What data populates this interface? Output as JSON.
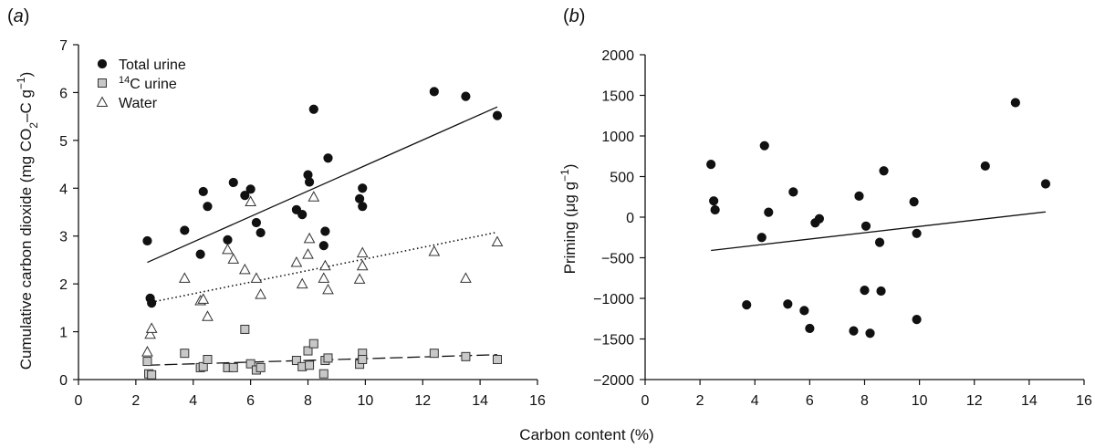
{
  "figure": {
    "shared_xlabel": "Carbon content (%)",
    "colors": {
      "total_urine": "#111111",
      "c14_urine": "#c8c8c8",
      "water": "#ffffff",
      "axis": "#111111"
    }
  },
  "chart_data": [
    {
      "panel": "a",
      "type": "scatter",
      "xlabel": "Carbon content (%)",
      "ylabel": "Cumulative carbon dioxide (mg CO2–C g−1)",
      "xlim": [
        0,
        16
      ],
      "ylim": [
        0,
        7
      ],
      "xticks": [
        0,
        2,
        4,
        6,
        8,
        10,
        12,
        14,
        16
      ],
      "yticks": [
        0,
        1,
        2,
        3,
        4,
        5,
        6,
        7
      ],
      "legend": "top-left",
      "series": [
        {
          "name": "Total urine",
          "marker": "filled-circle",
          "color": "#111111",
          "trendline": {
            "style": "solid",
            "x": [
              2.4,
              14.6
            ],
            "y": [
              2.45,
              5.7
            ]
          },
          "points": [
            [
              2.4,
              2.9
            ],
            [
              2.5,
              1.7
            ],
            [
              2.55,
              1.6
            ],
            [
              3.7,
              3.12
            ],
            [
              4.25,
              2.62
            ],
            [
              4.35,
              3.93
            ],
            [
              4.5,
              3.62
            ],
            [
              5.2,
              2.92
            ],
            [
              5.4,
              4.12
            ],
            [
              5.8,
              3.85
            ],
            [
              6.0,
              3.98
            ],
            [
              6.2,
              3.28
            ],
            [
              6.35,
              3.07
            ],
            [
              7.6,
              3.55
            ],
            [
              7.8,
              3.45
            ],
            [
              8.0,
              4.28
            ],
            [
              8.05,
              4.13
            ],
            [
              8.2,
              5.65
            ],
            [
              8.55,
              2.8
            ],
            [
              8.6,
              3.1
            ],
            [
              8.7,
              4.63
            ],
            [
              9.8,
              3.78
            ],
            [
              9.9,
              3.62
            ],
            [
              9.9,
              4.0
            ],
            [
              12.4,
              6.02
            ],
            [
              13.5,
              5.92
            ],
            [
              14.6,
              5.52
            ]
          ]
        },
        {
          "name": "14C urine",
          "legend_sup": "14",
          "legend_rest": "C urine",
          "marker": "square",
          "color": "#c8c8c8",
          "trendline": {
            "style": "dashed",
            "x": [
              2.4,
              14.6
            ],
            "y": [
              0.3,
              0.52
            ]
          },
          "points": [
            [
              2.4,
              0.38
            ],
            [
              2.45,
              0.12
            ],
            [
              2.55,
              0.1
            ],
            [
              3.7,
              0.55
            ],
            [
              4.25,
              0.25
            ],
            [
              4.35,
              0.27
            ],
            [
              4.5,
              0.42
            ],
            [
              5.2,
              0.25
            ],
            [
              5.4,
              0.25
            ],
            [
              5.8,
              1.05
            ],
            [
              6.0,
              0.33
            ],
            [
              6.2,
              0.2
            ],
            [
              6.35,
              0.25
            ],
            [
              7.6,
              0.4
            ],
            [
              7.8,
              0.27
            ],
            [
              8.0,
              0.6
            ],
            [
              8.05,
              0.3
            ],
            [
              8.2,
              0.75
            ],
            [
              8.55,
              0.12
            ],
            [
              8.6,
              0.4
            ],
            [
              8.7,
              0.45
            ],
            [
              9.8,
              0.32
            ],
            [
              9.9,
              0.55
            ],
            [
              9.9,
              0.42
            ],
            [
              12.4,
              0.55
            ],
            [
              13.5,
              0.48
            ],
            [
              14.6,
              0.42
            ]
          ]
        },
        {
          "name": "Water",
          "marker": "triangle",
          "color": "#ffffff",
          "trendline": {
            "style": "dotted",
            "x": [
              2.4,
              14.6
            ],
            "y": [
              1.6,
              3.08
            ]
          },
          "points": [
            [
              2.4,
              0.58
            ],
            [
              2.5,
              0.95
            ],
            [
              2.55,
              1.07
            ],
            [
              3.7,
              2.12
            ],
            [
              4.25,
              1.65
            ],
            [
              4.35,
              1.68
            ],
            [
              4.5,
              1.32
            ],
            [
              5.2,
              2.72
            ],
            [
              5.4,
              2.52
            ],
            [
              5.8,
              2.3
            ],
            [
              6.0,
              3.72
            ],
            [
              6.2,
              2.12
            ],
            [
              6.35,
              1.78
            ],
            [
              7.6,
              2.45
            ],
            [
              7.8,
              2.0
            ],
            [
              8.0,
              2.62
            ],
            [
              8.05,
              2.95
            ],
            [
              8.2,
              3.82
            ],
            [
              8.55,
              2.12
            ],
            [
              8.6,
              2.38
            ],
            [
              8.7,
              1.88
            ],
            [
              9.8,
              2.1
            ],
            [
              9.9,
              2.38
            ],
            [
              9.9,
              2.65
            ],
            [
              12.4,
              2.68
            ],
            [
              13.5,
              2.12
            ],
            [
              14.6,
              2.88
            ]
          ]
        }
      ]
    },
    {
      "panel": "b",
      "type": "scatter",
      "xlabel": "Carbon content (%)",
      "ylabel": "Priming (μg g−1)",
      "xlim": [
        0,
        16
      ],
      "ylim": [
        -2000,
        2000
      ],
      "xticks": [
        0,
        2,
        4,
        6,
        8,
        10,
        12,
        14,
        16
      ],
      "yticks": [
        -2000,
        -1500,
        -1000,
        -500,
        0,
        500,
        1000,
        1500,
        2000
      ],
      "series": [
        {
          "marker": "filled-circle",
          "color": "#111111",
          "trendline": {
            "style": "solid",
            "x": [
              2.4,
              14.6
            ],
            "y": [
              -410,
              65
            ]
          },
          "points": [
            [
              2.4,
              650
            ],
            [
              2.5,
              200
            ],
            [
              2.55,
              90
            ],
            [
              3.7,
              -1080
            ],
            [
              4.25,
              -250
            ],
            [
              4.35,
              880
            ],
            [
              4.5,
              60
            ],
            [
              5.2,
              -1070
            ],
            [
              5.4,
              310
            ],
            [
              5.8,
              -1150
            ],
            [
              6.0,
              -1370
            ],
            [
              6.2,
              -70
            ],
            [
              6.35,
              -20
            ],
            [
              7.6,
              -1400
            ],
            [
              7.8,
              260
            ],
            [
              8.0,
              -900
            ],
            [
              8.05,
              -110
            ],
            [
              8.2,
              -1430
            ],
            [
              8.55,
              -310
            ],
            [
              8.6,
              -910
            ],
            [
              8.7,
              570
            ],
            [
              9.8,
              190
            ],
            [
              9.9,
              -200
            ],
            [
              9.9,
              -1260
            ],
            [
              12.4,
              630
            ],
            [
              13.5,
              1410
            ],
            [
              14.6,
              410
            ]
          ]
        }
      ]
    }
  ]
}
